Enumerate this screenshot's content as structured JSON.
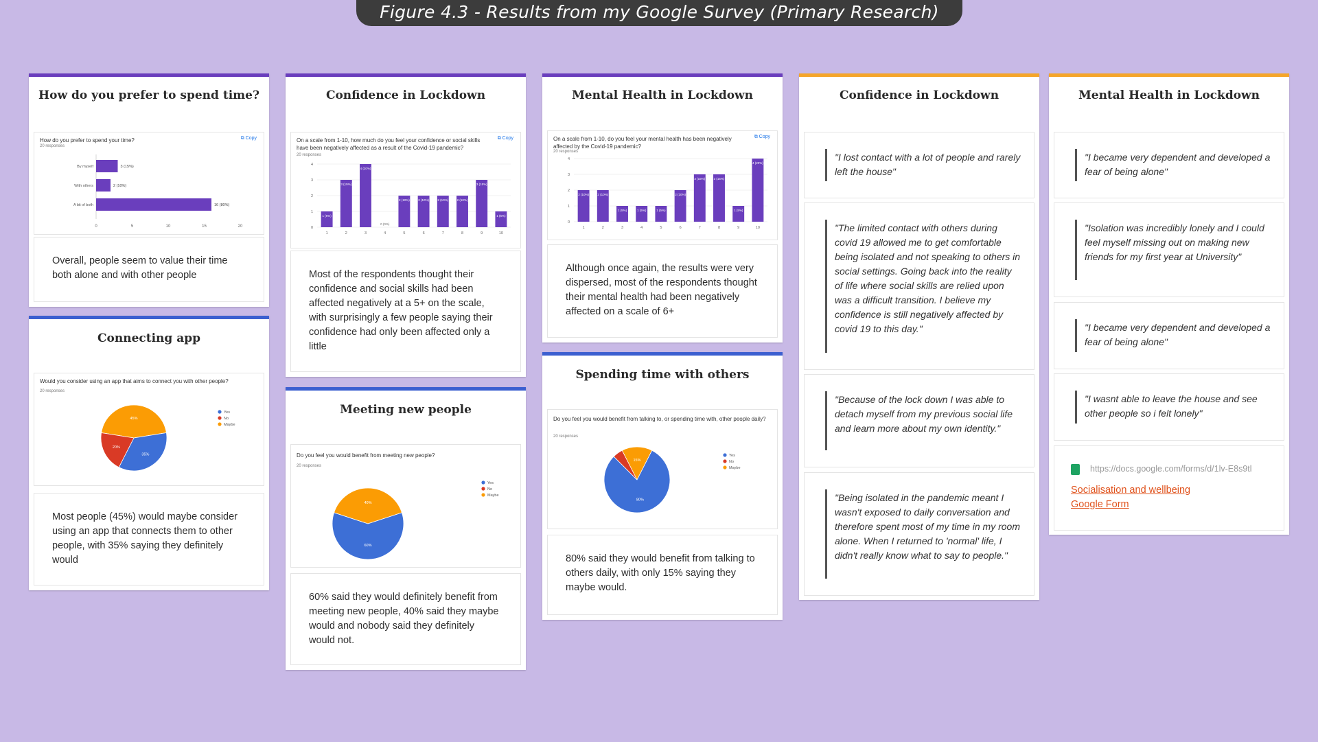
{
  "header": {
    "title": "Figure 4.3 - Results from my Google Survey (Primary Research)"
  },
  "colors": {
    "background": "#c8b9e6",
    "purple": "#6a3ebd",
    "blue": "#3c5fd0",
    "orange": "#f5a52a",
    "bar": "#6a3ebd",
    "yes": "#3d6fd6",
    "no": "#d93a25",
    "maybe": "#fb9c04"
  },
  "cards": {
    "prefer": {
      "title": "How do you prefer to spend time?",
      "question": "How do you prefer to spend your time?",
      "responses": "20 responses",
      "copy": "Copy",
      "description": "Overall, people seem to value their time both alone and with other people"
    },
    "connecting": {
      "title": "Connecting app",
      "question": "Would you consider using an app that aims to connect you with other people?",
      "responses": "20 responses",
      "description": "Most people (45%) would maybe consider using an app that connects them to other people, with 35% saying they definitely would"
    },
    "confidence": {
      "title": "Confidence in Lockdown",
      "question": "On a scale from 1-10, how much do you feel your confidence or social skills have been negatively affected as a result of the Covid-19 pandemic?",
      "responses": "20 responses",
      "copy": "Copy",
      "description": "Most of the respondents thought their confidence and social skills had been affected negatively at a 5+ on the scale, with surprisingly a few people saying their confidence had only been affected only a little"
    },
    "meeting": {
      "title": "Meeting new people",
      "question": "Do you feel you would benefit from meeting new people?",
      "responses": "20 responses",
      "description": "60% said they would definitely benefit from meeting new people, 40% said they maybe would and nobody said they definitely would not."
    },
    "mental": {
      "title": "Mental Health in Lockdown",
      "question": "On a scale from 1-10, do you feel your mental health has been negatively affected by the Covid-19 pandemic?",
      "responses": "20 responses",
      "copy": "Copy",
      "description": "Although once again, the results were very dispersed, most of the respondents thought their mental health had been negatively affected on a scale of 6+"
    },
    "spending": {
      "title": "Spending time with others",
      "question": "Do you feel you would benefit from talking to, or spending time with, other people daily?",
      "responses": "20 responses",
      "description": "80% said they would benefit from talking to others daily, with only 15% saying they maybe would."
    },
    "confidence_quotes": {
      "title": "Confidence in Lockdown",
      "quotes": [
        "\"I lost contact with a lot of people and rarely left the house\"",
        "\"The limited contact with others during covid 19 allowed me to get comfortable being isolated and not speaking to others in social settings. Going back into the reality of life where social skills are relied upon was a difficult transition. I believe my confidence is still negatively affected by covid 19 to this day.\"",
        "\"Because of the lock down I was able to detach myself from my previous social life and learn more about my own identity.\"",
        "\"Being isolated in the pandemic meant I wasn't exposed to daily conversation and therefore spent most of my time in my room alone. When I returned to 'normal' life, I didn't really know what to say to people.\""
      ]
    },
    "mental_quotes": {
      "title": "Mental Health in Lockdown",
      "quotes": [
        "\"I became very dependent and developed a fear of being alone\"",
        "\"Isolation was incredibly lonely and I could feel myself missing out on making new friends for my first year at University\"",
        "\"I became very dependent and developed a fear of being alone\"",
        "\"I wasnt able to leave the house and see other people so i felt lonely\""
      ],
      "link_url": "https://docs.google.com/forms/d/1lv-E8s9tl",
      "link_text_1": "Socialisation and wellbeing",
      "link_text_2": "Google Form"
    }
  },
  "chart_data": [
    {
      "type": "bar",
      "orientation": "horizontal",
      "title": "How do you prefer to spend your time?",
      "categories": [
        "By myself",
        "With others",
        "A bit of both"
      ],
      "values": [
        3,
        2,
        16
      ],
      "value_labels": [
        "3 (15%)",
        "2 (10%)",
        "16 (80%)"
      ],
      "xticks": [
        "0",
        "5",
        "10",
        "15",
        "20"
      ],
      "xlim": [
        0,
        20
      ]
    },
    {
      "type": "bar",
      "title": "On a scale from 1-10, how much do you feel your confidence or social skills have been negatively affected as a result of the Covid-19 pandemic?",
      "categories": [
        "1",
        "2",
        "3",
        "4",
        "5",
        "6",
        "7",
        "8",
        "9",
        "10"
      ],
      "values": [
        1,
        3,
        4,
        0,
        2,
        2,
        2,
        2,
        3,
        1
      ],
      "value_labels": [
        "1 (5%)",
        "3 (15%)",
        "4 (20%)",
        "0 (0%)",
        "2 (10%)",
        "2 (10%)",
        "2 (10%)",
        "2 (10%)",
        "3 (15%)",
        "1 (5%)"
      ],
      "yticks": [
        "0",
        "1",
        "2",
        "3",
        "4"
      ],
      "ylim": [
        0,
        4
      ]
    },
    {
      "type": "bar",
      "title": "On a scale from 1-10, do you feel your mental health has been negatively affected by the Covid-19 pandemic?",
      "categories": [
        "1",
        "2",
        "3",
        "4",
        "5",
        "6",
        "7",
        "8",
        "9",
        "10"
      ],
      "values": [
        2,
        2,
        1,
        1,
        1,
        2,
        3,
        3,
        1,
        4
      ],
      "value_labels": [
        "2 (10%)",
        "2 (10%)",
        "1 (5%)",
        "1 (5%)",
        "1 (5%)",
        "2 (10%)",
        "3 (15%)",
        "3 (15%)",
        "1 (5%)",
        "4 (20%)"
      ],
      "yticks": [
        "0",
        "1",
        "2",
        "3",
        "4"
      ],
      "ylim": [
        0,
        4
      ]
    },
    {
      "type": "pie",
      "title": "Would you consider using an app that aims to connect you with other people?",
      "legend": [
        "Yes",
        "No",
        "Maybe"
      ],
      "values": [
        35,
        20,
        45
      ],
      "labels": [
        "35%",
        "20%",
        "45%"
      ]
    },
    {
      "type": "pie",
      "title": "Do you feel you would benefit from meeting new people?",
      "legend": [
        "Yes",
        "No",
        "Maybe"
      ],
      "values": [
        60,
        0,
        40
      ],
      "labels": [
        "60%",
        "",
        "40%"
      ]
    },
    {
      "type": "pie",
      "title": "Do you feel you would benefit from talking to, or spending time with, other people daily?",
      "legend": [
        "Yes",
        "No",
        "Maybe"
      ],
      "values": [
        80,
        5,
        15
      ],
      "labels": [
        "80%",
        "",
        "15%"
      ]
    }
  ]
}
